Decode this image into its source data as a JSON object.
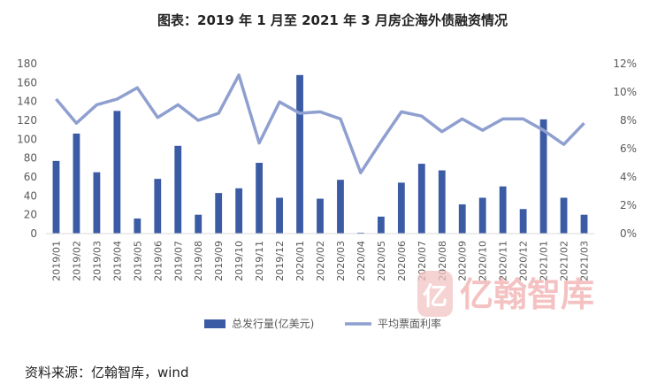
{
  "source": "资料来源：亿翰智库，wind",
  "watermark": "亿翰智库",
  "chart_data": {
    "type": "bar+line",
    "title": "图表：2019 年 1 月至 2021 年 3 月房企海外债融资情况",
    "categories": [
      "2019/01",
      "2019/02",
      "2019/03",
      "2019/04",
      "2019/05",
      "2019/06",
      "2019/07",
      "2019/08",
      "2019/09",
      "2019/10",
      "2019/11",
      "2019/12",
      "2020/01",
      "2020/02",
      "2020/03",
      "2020/04",
      "2020/05",
      "2020/06",
      "2020/07",
      "2020/08",
      "2020/09",
      "2020/10",
      "2020/11",
      "2020/12",
      "2021/01",
      "2021/02",
      "2021/03"
    ],
    "series": [
      {
        "name": "总发行量(亿美元)",
        "type": "bar",
        "axis": "left",
        "color": "#3b5ba5",
        "values": [
          77,
          106,
          65,
          130,
          16,
          58,
          93,
          20,
          43,
          48,
          75,
          38,
          168,
          37,
          57,
          1,
          18,
          54,
          74,
          67,
          31,
          38,
          50,
          26,
          121,
          38,
          20
        ]
      },
      {
        "name": "平均票面利率",
        "type": "line",
        "axis": "right",
        "color": "#8e9fd0",
        "values": [
          9.5,
          7.8,
          9.1,
          9.5,
          10.3,
          8.2,
          9.1,
          8.0,
          8.5,
          11.2,
          6.4,
          9.3,
          8.5,
          8.6,
          8.1,
          4.3,
          6.5,
          8.6,
          8.3,
          7.2,
          8.1,
          7.3,
          8.1,
          8.1,
          7.3,
          6.3,
          7.8
        ]
      }
    ],
    "left_axis": {
      "ylim": [
        0,
        180
      ],
      "ticks": [
        "0",
        "20",
        "40",
        "60",
        "80",
        "100",
        "120",
        "140",
        "160",
        "180"
      ]
    },
    "right_axis": {
      "ylim": [
        0,
        12
      ],
      "ticks": [
        "0%",
        "2%",
        "4%",
        "6%",
        "8%",
        "10%",
        "12%"
      ]
    },
    "legend_position": "bottom",
    "grid": false
  }
}
